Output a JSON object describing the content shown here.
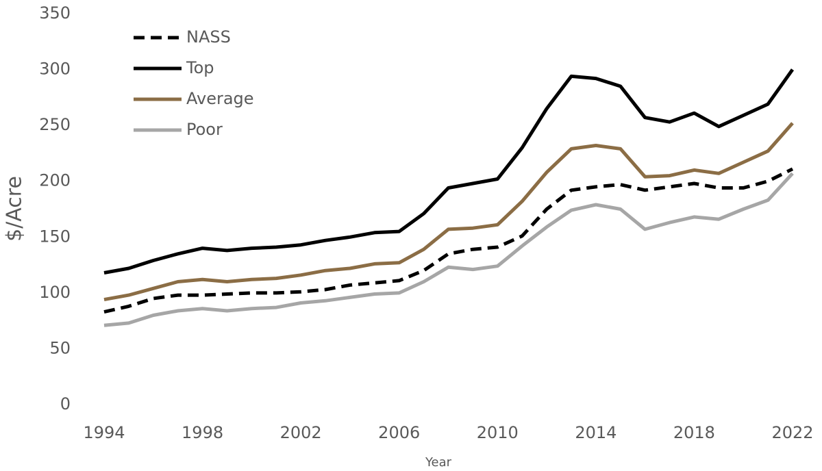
{
  "chart_data": {
    "type": "line",
    "x_label": "Year",
    "y_label": "$/Acre",
    "x": [
      1994,
      1995,
      1996,
      1997,
      1998,
      1999,
      2000,
      2001,
      2002,
      2003,
      2004,
      2005,
      2006,
      2007,
      2008,
      2009,
      2010,
      2011,
      2012,
      2013,
      2014,
      2015,
      2016,
      2017,
      2018,
      2019,
      2020,
      2021,
      2022
    ],
    "series": [
      {
        "name": "NASS",
        "color": "#000000",
        "style": "dashed",
        "values": [
          83,
          88,
          95,
          98,
          98,
          99,
          100,
          100,
          101,
          103,
          107,
          109,
          111,
          120,
          135,
          139,
          141,
          151,
          175,
          192,
          195,
          197,
          192,
          195,
          198,
          194,
          194,
          200,
          211
        ]
      },
      {
        "name": "Top",
        "color": "#000000",
        "style": "solid",
        "values": [
          118,
          122,
          129,
          135,
          140,
          138,
          140,
          141,
          143,
          147,
          150,
          154,
          155,
          171,
          194,
          198,
          202,
          230,
          265,
          294,
          292,
          285,
          257,
          253,
          261,
          249,
          259,
          269,
          300
        ]
      },
      {
        "name": "Average",
        "color": "#8b6d45",
        "style": "solid",
        "values": [
          94,
          98,
          104,
          110,
          112,
          110,
          112,
          113,
          116,
          120,
          122,
          126,
          127,
          139,
          157,
          158,
          161,
          182,
          208,
          229,
          232,
          229,
          204,
          205,
          210,
          207,
          217,
          227,
          252
        ]
      },
      {
        "name": "Poor",
        "color": "#a6a6a6",
        "style": "solid",
        "values": [
          71,
          73,
          80,
          84,
          86,
          84,
          86,
          87,
          91,
          93,
          96,
          99,
          100,
          110,
          123,
          121,
          124,
          142,
          159,
          174,
          179,
          175,
          157,
          163,
          168,
          166,
          175,
          183,
          207
        ]
      }
    ],
    "xlim": [
      1994,
      2022
    ],
    "xticks": [
      1994,
      1998,
      2002,
      2006,
      2010,
      2014,
      2018,
      2022
    ],
    "ylim": [
      0,
      350
    ],
    "yticks": [
      0,
      50,
      100,
      150,
      200,
      250,
      300,
      350
    ],
    "grid": false,
    "legend": "top-left"
  }
}
